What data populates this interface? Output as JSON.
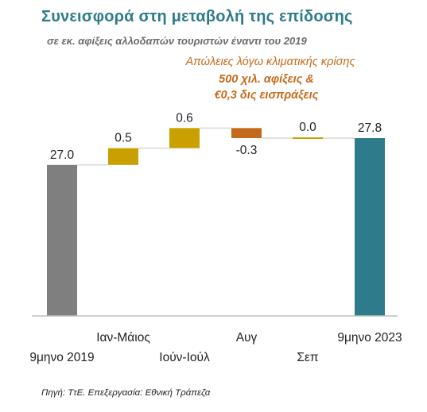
{
  "title": "Συνεισφορά στη μεταβολή της επίδοσης",
  "subtitle": "σε εκ. αφίξεις αλλοδαπών τουριστών έναντι του 2019",
  "annotation": {
    "line1": "Απώλειες λόγω κλιματικής κρίσης",
    "line2": "500 χιλ. αφίξεις &",
    "line3": "€0,3 δις εισπράξεις"
  },
  "source": "Πηγή: ΤτΕ. Επεξεργασία: Εθνική Τράπεζα",
  "colors": {
    "total_2019": "#7f7f7f",
    "increase": "#c9a000",
    "decrease": "#c56a1a",
    "total_2023": "#2e7b8c",
    "connector": "#d9d9d9",
    "axis": "#bfbfbf"
  },
  "chart_data": {
    "type": "bar",
    "subtype": "waterfall",
    "categories": [
      "9μηνο 2019",
      "Ιαν-Μάιος",
      "Ιούν-Ιούλ",
      "Αυγ",
      "Σεπ",
      "9μηνο 2023"
    ],
    "values": [
      27.0,
      0.5,
      0.6,
      -0.3,
      0.0,
      27.8
    ],
    "value_labels": [
      "27.0",
      "0.5",
      "0.6",
      "-0.3",
      "0.0",
      "27.8"
    ],
    "bar_kind": [
      "total",
      "delta",
      "delta",
      "delta",
      "delta",
      "total"
    ],
    "label_row": [
      "lower",
      "upper",
      "lower",
      "upper",
      "lower",
      "upper"
    ],
    "ylim": [
      22.5,
      29.0
    ],
    "grid": false,
    "legend": "none"
  }
}
